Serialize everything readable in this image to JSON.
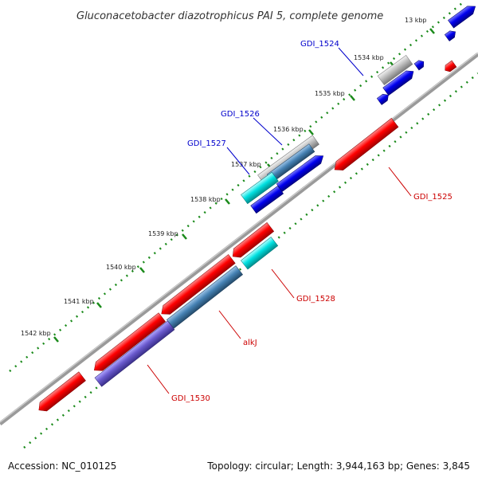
{
  "title": "Gluconacetobacter diazotrophicus PAI 5, complete genome",
  "footer": {
    "accession": "Accession: NC_010125",
    "topology": "Topology: circular; Length: 3,944,163 bp; Genes: 3,845"
  },
  "colors": {
    "red": "#ff0000",
    "blue": "#0000ee",
    "cyan": "#00eeee",
    "steel": "#4682b4",
    "slate": "#7b68ee",
    "grey": "#b0b0b0",
    "backbone": "#808080",
    "tick_green": "#1a8a1a",
    "label_blue": "#0000cc",
    "label_red": "#cc0000"
  },
  "ticks": [
    "13 kbp",
    "1534 kbp",
    "1535 kbp",
    "1536 kbp",
    "1537 kbp",
    "1538 kbp",
    "1539 kbp",
    "1540 kbp",
    "1541 kbp",
    "1542 kbp"
  ],
  "gene_labels": {
    "GDI_1524": "GDI_1524",
    "GDI_1525": "GDI_1525",
    "GDI_1526": "GDI_1526",
    "GDI_1527": "GDI_1527",
    "GDI_1528": "GDI_1528",
    "alkJ": "alkJ",
    "GDI_1530": "GDI_1530"
  }
}
